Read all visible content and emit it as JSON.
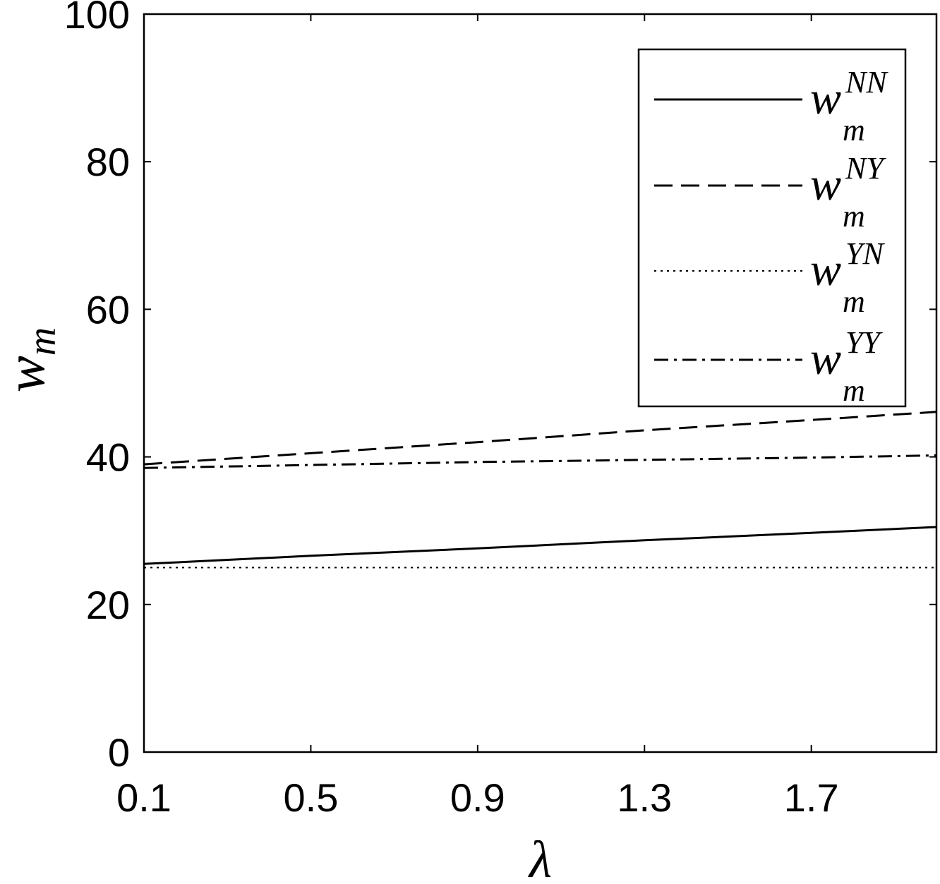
{
  "chart_data": {
    "type": "line",
    "title": "",
    "xlabel": "λ",
    "ylabel": "w",
    "ylabel_sub": "m",
    "xlim": [
      0.1,
      2.0
    ],
    "ylim": [
      0,
      100
    ],
    "xticks": [
      0.1,
      0.5,
      0.9,
      1.3,
      1.7
    ],
    "xtick_labels": [
      "0.1",
      "0.5",
      "0.9",
      "1.3",
      "1.7"
    ],
    "yticks": [
      0,
      20,
      40,
      60,
      80,
      100
    ],
    "ytick_labels": [
      "0",
      "20",
      "40",
      "60",
      "80",
      "100"
    ],
    "grid": false,
    "legend_position": "top-right",
    "series": [
      {
        "name": "NN",
        "legend_base": "w",
        "legend_sub": "m",
        "legend_sup": "NN",
        "style": "solid",
        "x": [
          0.1,
          0.5,
          0.9,
          1.3,
          1.7,
          2.0
        ],
        "values": [
          25.5,
          26.6,
          27.6,
          28.7,
          29.7,
          30.5
        ]
      },
      {
        "name": "NY",
        "legend_base": "w",
        "legend_sub": "m",
        "legend_sup": "NY",
        "style": "dashed",
        "x": [
          0.1,
          0.5,
          0.9,
          1.3,
          1.7,
          2.0
        ],
        "values": [
          39.0,
          40.5,
          42.0,
          43.6,
          45.0,
          46.1
        ]
      },
      {
        "name": "YN",
        "legend_base": "w",
        "legend_sub": "m",
        "legend_sup": "YN",
        "style": "dotted",
        "x": [
          0.1,
          0.5,
          0.9,
          1.3,
          1.7,
          2.0
        ],
        "values": [
          25.0,
          25.0,
          25.0,
          25.0,
          25.0,
          25.0
        ]
      },
      {
        "name": "YY",
        "legend_base": "w",
        "legend_sub": "m",
        "legend_sup": "YY",
        "style": "dashdot",
        "x": [
          0.1,
          0.5,
          0.9,
          1.3,
          1.7,
          2.0
        ],
        "values": [
          38.5,
          38.9,
          39.3,
          39.6,
          39.9,
          40.2
        ]
      }
    ]
  }
}
